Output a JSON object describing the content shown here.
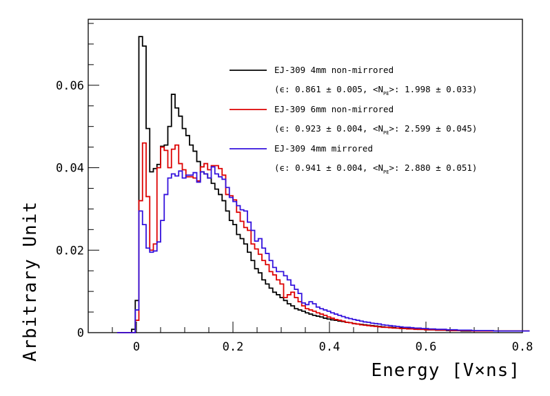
{
  "chart_data": {
    "type": "line",
    "subtype": "step-histogram",
    "xlabel": "Energy [V×ns]",
    "ylabel": "Arbitrary Unit",
    "xlim": [
      -0.1,
      0.8
    ],
    "ylim": [
      0,
      0.076
    ],
    "x_ticks": [
      0,
      0.2,
      0.4,
      0.6,
      0.8
    ],
    "x_tick_labels": [
      "0",
      "0.2",
      "0.4",
      "0.6",
      "0.8"
    ],
    "y_ticks": [
      0,
      0.02,
      0.04,
      0.06
    ],
    "y_tick_labels": [
      "0",
      "0.02",
      "0.04",
      "0.06"
    ],
    "x_minor_step": 0.05,
    "y_minor_step": 0.005,
    "bin_start": -0.04,
    "bin_width": 0.0075,
    "grid": false,
    "legend_position": "top-right",
    "series": [
      {
        "name": "EJ-309 4mm non-mirrored",
        "stats": "(ϵ: 0.861 ± 0.005, <N",
        "stats_sub": "PE",
        "stats_tail": ">: 1.998 ± 0.033)",
        "color": "#000000",
        "values": [
          0.0,
          0.0,
          0.0,
          0.0,
          0.0008,
          0.0078,
          0.0718,
          0.0695,
          0.0495,
          0.039,
          0.0398,
          0.0408,
          0.0452,
          0.0455,
          0.05,
          0.0578,
          0.0545,
          0.0525,
          0.0495,
          0.0478,
          0.0455,
          0.044,
          0.0415,
          0.039,
          0.0385,
          0.0375,
          0.0362,
          0.0348,
          0.0335,
          0.032,
          0.0295,
          0.0272,
          0.0262,
          0.0238,
          0.0228,
          0.0215,
          0.0195,
          0.0175,
          0.0155,
          0.0145,
          0.0128,
          0.0118,
          0.0108,
          0.0098,
          0.0092,
          0.0085,
          0.0078,
          0.007,
          0.0065,
          0.0058,
          0.0055,
          0.0052,
          0.0048,
          0.0045,
          0.0042,
          0.004,
          0.0038,
          0.0035,
          0.0033,
          0.0031,
          0.003,
          0.0028,
          0.0027,
          0.0025,
          0.0024,
          0.0022,
          0.0021,
          0.002,
          0.0019,
          0.0018,
          0.0017,
          0.0016,
          0.0015,
          0.0014,
          0.0013,
          0.0013,
          0.0012,
          0.0011,
          0.0011,
          0.001,
          0.001,
          0.0009,
          0.0009,
          0.0008,
          0.0008,
          0.0007,
          0.0007,
          0.0007,
          0.0006,
          0.0006,
          0.0006,
          0.0005,
          0.0005,
          0.0005,
          0.0005,
          0.0004,
          0.0004,
          0.0004,
          0.0004,
          0.0004,
          0.0004,
          0.0004,
          0.0004,
          0.0004,
          0.0004,
          0.0004,
          0.0004,
          0.0004,
          0.0004,
          0.0004,
          0.0004,
          0.0004,
          0.0004,
          0.0004
        ]
      },
      {
        "name": "EJ-309 6mm non-mirrored",
        "stats": "(ϵ: 0.923 ± 0.004, <N",
        "stats_sub": "PE",
        "stats_tail": ">: 2.599 ± 0.045)",
        "color": "#dd0000",
        "values": [
          0.0,
          0.0,
          0.0,
          0.0,
          0.0,
          0.003,
          0.032,
          0.046,
          0.033,
          0.02,
          0.0215,
          0.04,
          0.045,
          0.0442,
          0.04,
          0.0445,
          0.0455,
          0.041,
          0.0395,
          0.0378,
          0.0378,
          0.0375,
          0.0368,
          0.0402,
          0.041,
          0.0395,
          0.0405,
          0.0405,
          0.0398,
          0.0382,
          0.0335,
          0.0332,
          0.0322,
          0.0292,
          0.027,
          0.0255,
          0.0248,
          0.0215,
          0.0203,
          0.019,
          0.0175,
          0.0165,
          0.0148,
          0.014,
          0.0128,
          0.0118,
          0.0085,
          0.0092,
          0.0098,
          0.0085,
          0.0075,
          0.0065,
          0.0058,
          0.0055,
          0.0052,
          0.0048,
          0.0045,
          0.0042,
          0.0038,
          0.0035,
          0.0032,
          0.003,
          0.0028,
          0.0025,
          0.0024,
          0.0022,
          0.0021,
          0.0019,
          0.0018,
          0.0017,
          0.0016,
          0.0015,
          0.0014,
          0.0013,
          0.0013,
          0.0012,
          0.0011,
          0.0011,
          0.001,
          0.001,
          0.0009,
          0.0009,
          0.0008,
          0.0008,
          0.0008,
          0.0007,
          0.0007,
          0.0007,
          0.0006,
          0.0006,
          0.0006,
          0.0006,
          0.0005,
          0.0005,
          0.0005,
          0.0005,
          0.0005,
          0.0005,
          0.0004,
          0.0004,
          0.0004,
          0.0004,
          0.0004,
          0.0004,
          0.0004,
          0.0004,
          0.0004,
          0.0004,
          0.0004,
          0.0004,
          0.0004,
          0.0004,
          0.0004,
          0.0004
        ]
      },
      {
        "name": "EJ-309 4mm mirrored",
        "stats": "(ϵ: 0.941 ± 0.004, <N",
        "stats_sub": "PE",
        "stats_tail": ">: 2.880 ± 0.051)",
        "color": "#3311dd",
        "values": [
          0.0,
          0.0,
          0.0,
          0.0,
          0.0,
          0.0055,
          0.0295,
          0.0262,
          0.0205,
          0.0195,
          0.0198,
          0.022,
          0.0272,
          0.0335,
          0.0375,
          0.0385,
          0.038,
          0.0392,
          0.0375,
          0.0382,
          0.0382,
          0.0388,
          0.0365,
          0.039,
          0.0385,
          0.0375,
          0.0402,
          0.0385,
          0.0378,
          0.0372,
          0.0352,
          0.0328,
          0.0318,
          0.0308,
          0.0298,
          0.0295,
          0.0268,
          0.0248,
          0.0222,
          0.0228,
          0.0205,
          0.0192,
          0.0175,
          0.0158,
          0.0148,
          0.0148,
          0.0138,
          0.0128,
          0.0115,
          0.0105,
          0.0095,
          0.0072,
          0.0068,
          0.0075,
          0.007,
          0.0062,
          0.0058,
          0.0055,
          0.0052,
          0.0048,
          0.0045,
          0.0042,
          0.0039,
          0.0036,
          0.0034,
          0.0032,
          0.003,
          0.0028,
          0.0026,
          0.0025,
          0.0023,
          0.0022,
          0.0021,
          0.0019,
          0.0018,
          0.0017,
          0.0016,
          0.0015,
          0.0014,
          0.0013,
          0.0013,
          0.0012,
          0.0011,
          0.0011,
          0.001,
          0.001,
          0.0009,
          0.0009,
          0.0008,
          0.0008,
          0.0008,
          0.0007,
          0.0007,
          0.0007,
          0.0006,
          0.0006,
          0.0006,
          0.0006,
          0.0005,
          0.0005,
          0.0005,
          0.0005,
          0.0005,
          0.0005,
          0.0004,
          0.0004,
          0.0004,
          0.0004,
          0.0004,
          0.0004,
          0.0004,
          0.0004,
          0.0004,
          0.0004
        ]
      }
    ]
  }
}
